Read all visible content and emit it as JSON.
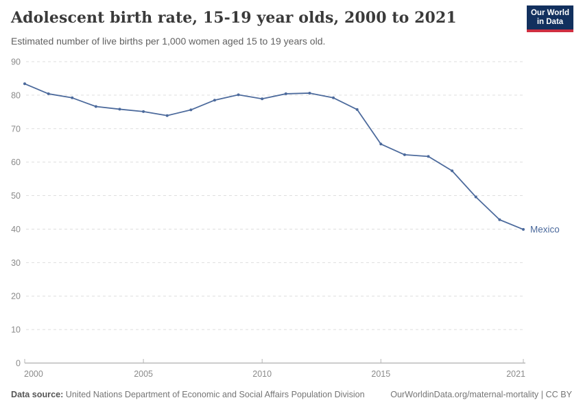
{
  "header": {
    "title": "Adolescent birth rate, 15-19 year olds, 2000 to 2021",
    "subtitle": "Estimated number of live births per 1,000 women aged 15 to 19 years old."
  },
  "logo": {
    "line1": "Our World",
    "line2": "in Data",
    "bg_color": "#12305e",
    "stripe_color": "#cf2f41"
  },
  "chart_data": {
    "type": "line",
    "title": "Adolescent birth rate, 15-19 year olds, 2000 to 2021",
    "xlabel": "",
    "ylabel": "",
    "x": [
      2000,
      2001,
      2002,
      2003,
      2004,
      2005,
      2006,
      2007,
      2008,
      2009,
      2010,
      2011,
      2012,
      2013,
      2014,
      2015,
      2016,
      2017,
      2018,
      2019,
      2020,
      2021
    ],
    "series": [
      {
        "name": "Mexico",
        "color": "#4C6A9C",
        "values": [
          83.4,
          80.4,
          79.2,
          76.6,
          75.8,
          75.1,
          73.9,
          75.6,
          78.5,
          80.1,
          78.9,
          80.4,
          80.6,
          79.2,
          75.7,
          65.4,
          62.2,
          61.7,
          57.4,
          49.6,
          42.8,
          39.9
        ]
      }
    ],
    "ylim": [
      0,
      90
    ],
    "yticks": [
      0,
      10,
      20,
      30,
      40,
      50,
      60,
      70,
      80,
      90
    ],
    "xticks": [
      2000,
      2005,
      2010,
      2015,
      2021
    ],
    "grid": "horizontal-dashed",
    "legend_position": "end-of-line-label",
    "colors": {
      "gridline": "#dedede",
      "axis_line": "#9a9a9a",
      "tick_label": "#8a8a8a"
    }
  },
  "footer": {
    "datasource_label": "Data source:",
    "datasource_text": "United Nations Department of Economic and Social Affairs Population Division",
    "credit": "OurWorldinData.org/maternal-mortality | CC BY"
  }
}
